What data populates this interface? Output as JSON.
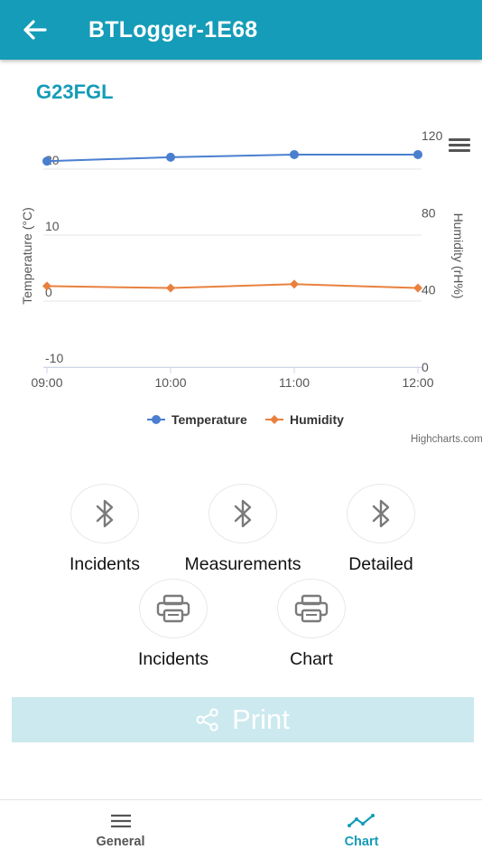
{
  "app_bar": {
    "title": "BTLogger-1E68",
    "back_icon": "arrow-left-icon",
    "background": "#159cb8"
  },
  "device": {
    "id": "G23FGL"
  },
  "chart_data": {
    "type": "line",
    "categories": [
      "09:00",
      "10:00",
      "11:00",
      "12:00"
    ],
    "yaxis_left": {
      "label": "Temperature (°C)",
      "range": [
        -10,
        20
      ],
      "ticks": [
        "-10",
        "0",
        "10",
        "20"
      ]
    },
    "yaxis_right": {
      "label": "Humidity (rH%)",
      "range": [
        0,
        120
      ],
      "ticks": [
        "0",
        "40",
        "80",
        "120"
      ]
    },
    "series": [
      {
        "name": "Temperature",
        "axis": "left",
        "color": "#4a7fd0",
        "marker": "circle",
        "values": [
          21.2,
          21.8,
          22.2,
          22.2
        ]
      },
      {
        "name": "Humidity",
        "axis": "right",
        "color": "#e9803e",
        "marker": "diamond",
        "values": [
          42,
          41,
          43,
          41
        ]
      }
    ],
    "grid": true,
    "legend_position": "bottom-center",
    "credit": "Highcharts.com",
    "menu_icon": "hamburger-menu-icon"
  },
  "actions": {
    "bluetooth": [
      {
        "label": "Incidents",
        "icon": "bluetooth-icon"
      },
      {
        "label": "Measurements",
        "icon": "bluetooth-icon"
      },
      {
        "label": "Detailed",
        "icon": "bluetooth-icon"
      }
    ],
    "printer": [
      {
        "label": "Incidents",
        "icon": "printer-icon"
      },
      {
        "label": "Chart",
        "icon": "printer-icon"
      }
    ]
  },
  "print_bar": {
    "label": "Print",
    "icon": "share-icon",
    "background": "#cce9ef"
  },
  "bottom_nav": {
    "items": [
      {
        "label": "General",
        "icon": "menu-lines-icon",
        "active": false,
        "color": "#555555"
      },
      {
        "label": "Chart",
        "icon": "line-chart-icon",
        "active": true,
        "color": "#159cb8"
      }
    ]
  }
}
